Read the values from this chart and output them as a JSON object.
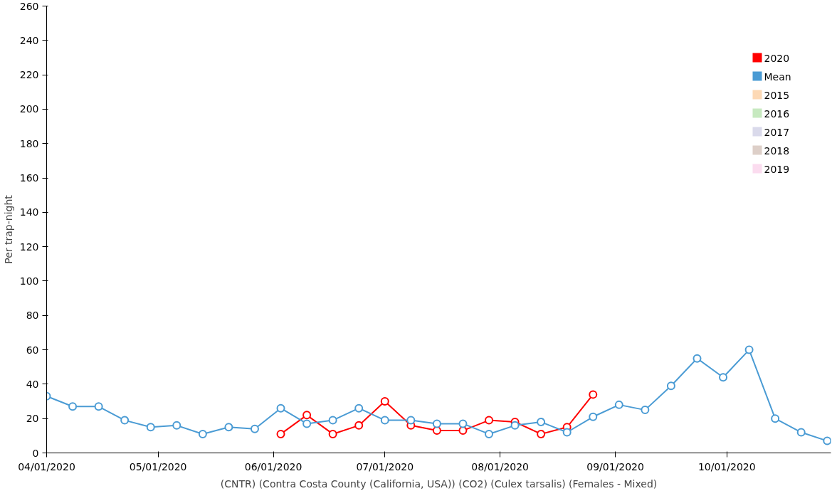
{
  "chart_data": {
    "type": "line",
    "xlabel": "(CNTR) (Contra Costa County (California, USA)) (CO2) (Culex tarsalis) (Females - Mixed)",
    "ylabel": "Per trap-night",
    "x": [
      "2020-04-01",
      "2020-04-08",
      "2020-04-15",
      "2020-04-22",
      "2020-04-29",
      "2020-05-06",
      "2020-05-13",
      "2020-05-20",
      "2020-05-27",
      "2020-06-03",
      "2020-06-10",
      "2020-06-17",
      "2020-06-24",
      "2020-07-01",
      "2020-07-08",
      "2020-07-15",
      "2020-07-22",
      "2020-07-29",
      "2020-08-05",
      "2020-08-12",
      "2020-08-19",
      "2020-08-26",
      "2020-09-02",
      "2020-09-09",
      "2020-09-16",
      "2020-09-23",
      "2020-09-30",
      "2020-10-07",
      "2020-10-14",
      "2020-10-21",
      "2020-10-28"
    ],
    "series": [
      {
        "name": "2020",
        "color": "#ff0000",
        "values": [
          null,
          null,
          null,
          null,
          null,
          null,
          null,
          null,
          null,
          11,
          22,
          11,
          16,
          30,
          16,
          13,
          13,
          19,
          18,
          11,
          15,
          34,
          null,
          null,
          null,
          null,
          null,
          null,
          null,
          null,
          null
        ]
      },
      {
        "name": "Mean",
        "color": "#4a9bd4",
        "values": [
          33,
          27,
          27,
          19,
          15,
          16,
          11,
          15,
          14,
          26,
          17,
          19,
          26,
          19,
          19,
          17,
          17,
          11,
          16,
          18,
          12,
          21,
          28,
          25,
          39,
          55,
          44,
          60,
          20,
          12,
          7
        ]
      },
      {
        "name": "2015",
        "color": "#fdd9b5",
        "values": [
          null,
          null,
          null,
          null,
          null,
          null,
          null,
          null,
          null,
          null,
          null,
          null,
          null,
          null,
          null,
          null,
          null,
          null,
          null,
          null,
          null,
          null,
          null,
          null,
          null,
          null,
          null,
          null,
          null,
          null,
          null
        ]
      },
      {
        "name": "2016",
        "color": "#c7e9c0",
        "values": [
          null,
          null,
          null,
          null,
          null,
          null,
          null,
          null,
          null,
          null,
          null,
          null,
          null,
          null,
          null,
          null,
          null,
          null,
          null,
          null,
          null,
          null,
          null,
          null,
          null,
          null,
          null,
          null,
          null,
          null,
          null
        ]
      },
      {
        "name": "2017",
        "color": "#dadaeb",
        "values": [
          null,
          null,
          null,
          null,
          null,
          null,
          null,
          null,
          null,
          null,
          null,
          null,
          null,
          null,
          null,
          null,
          null,
          null,
          null,
          null,
          null,
          null,
          null,
          null,
          null,
          null,
          null,
          null,
          null,
          null,
          null
        ]
      },
      {
        "name": "2018",
        "color": "#ddcfc8",
        "values": [
          null,
          null,
          null,
          null,
          null,
          null,
          null,
          null,
          null,
          null,
          null,
          null,
          null,
          null,
          null,
          null,
          null,
          null,
          null,
          null,
          null,
          null,
          null,
          null,
          null,
          null,
          null,
          null,
          null,
          null,
          null
        ]
      },
      {
        "name": "2019",
        "color": "#fbdcef",
        "values": [
          null,
          null,
          null,
          null,
          null,
          null,
          null,
          null,
          null,
          null,
          null,
          null,
          null,
          null,
          null,
          null,
          null,
          null,
          null,
          null,
          null,
          null,
          null,
          null,
          null,
          null,
          null,
          null,
          null,
          null,
          null
        ]
      }
    ],
    "xlim": [
      "2020-04-01",
      "2020-10-29"
    ],
    "xticks": [
      {
        "value": "2020-04-01",
        "label": "04/01/2020"
      },
      {
        "value": "2020-05-01",
        "label": "05/01/2020"
      },
      {
        "value": "2020-06-01",
        "label": "06/01/2020"
      },
      {
        "value": "2020-07-01",
        "label": "07/01/2020"
      },
      {
        "value": "2020-08-01",
        "label": "08/01/2020"
      },
      {
        "value": "2020-09-01",
        "label": "09/01/2020"
      },
      {
        "value": "2020-10-01",
        "label": "10/01/2020"
      }
    ],
    "ylim": [
      0,
      260
    ],
    "yticks": [
      0,
      20,
      40,
      60,
      80,
      100,
      120,
      140,
      160,
      180,
      200,
      220,
      240,
      260
    ],
    "grid": false,
    "legend": "top right",
    "marker": "circle",
    "line_style": "solid"
  }
}
